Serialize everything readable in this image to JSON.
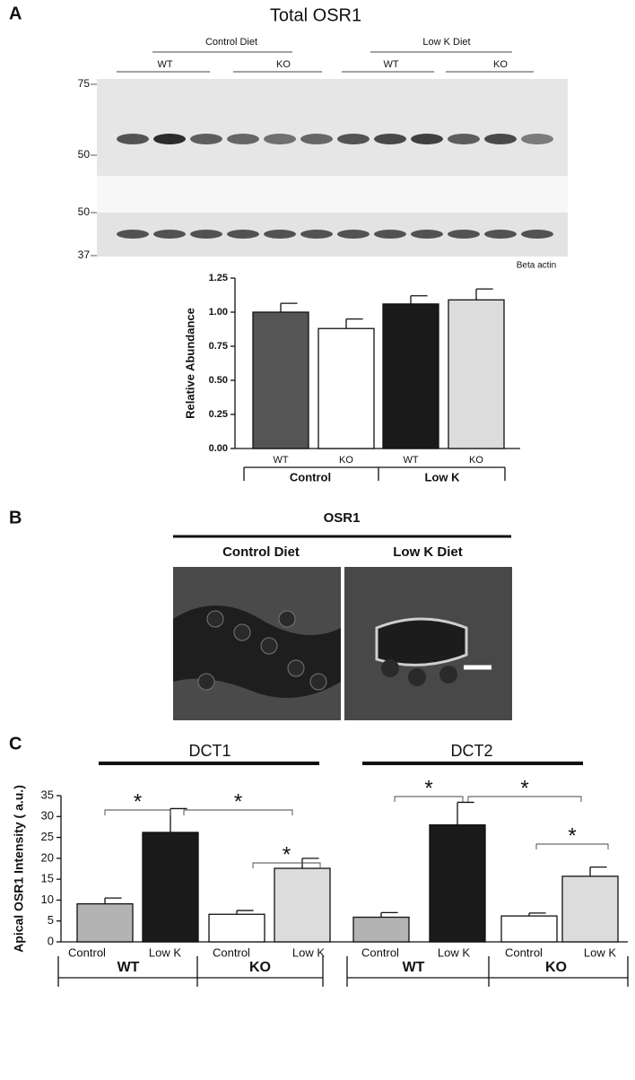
{
  "blot": {
    "panel": "A",
    "title": "Total OSR1",
    "diets": [
      "Control Diet",
      "Low K Diet"
    ],
    "genotypes": [
      "WT",
      "KO",
      "WT",
      "KO"
    ],
    "markers": [
      75,
      50,
      50,
      37
    ],
    "loading_control": "Beta  actin"
  },
  "micrograph": {
    "panel": "B",
    "title": "OSR1",
    "conditions": [
      "Control Diet",
      "Low K Diet"
    ]
  },
  "chart_data": [
    {
      "type": "bar",
      "ylabel": "Relative Abundance",
      "categories": [
        "WT",
        "KO",
        "WT",
        "KO"
      ],
      "values": [
        1.0,
        0.88,
        1.06,
        1.09
      ],
      "errors": [
        0.065,
        0.07,
        0.06,
        0.08
      ],
      "colors": [
        "#555555",
        "#ffffff",
        "#1a1a1a",
        "#dcdcdc"
      ],
      "ylim": [
        0,
        1.25
      ],
      "yticks": [
        {
          "value": 0,
          "label": "0.00"
        },
        {
          "value": 0.25,
          "label": "0.25"
        },
        {
          "value": 0.5,
          "label": "0.50"
        },
        {
          "value": 0.75,
          "label": "0.75"
        },
        {
          "value": 1,
          "label": "1.00"
        },
        {
          "value": 1.25,
          "label": "1.25"
        }
      ],
      "groups": [
        "Control",
        "Low K"
      ]
    },
    {
      "type": "bar",
      "panel": "C",
      "groups": [
        "DCT1",
        "DCT2"
      ],
      "subgroups": [
        "WT",
        "KO",
        "WT",
        "KO"
      ],
      "ylabel": "Apical OSR1 Intensity ( a.u.)",
      "categories": [
        "Control",
        "Low K",
        "Control",
        "Low K",
        "Control",
        "Low K",
        "Control",
        "Low K"
      ],
      "values": [
        9.1,
        26.2,
        6.6,
        17.6,
        5.9,
        28.0,
        6.2,
        15.7
      ],
      "errors": [
        1.4,
        5.7,
        0.9,
        2.4,
        1.1,
        5.4,
        0.7,
        2.2
      ],
      "colors": [
        "#b3b3b3",
        "#1a1a1a",
        "#ffffff",
        "#dcdcdc",
        "#b3b3b3",
        "#1a1a1a",
        "#ffffff",
        "#dcdcdc"
      ],
      "ylim": [
        0,
        35
      ],
      "yticks": [
        0,
        5,
        10,
        15,
        20,
        25,
        30,
        35
      ],
      "annotations": [
        "*",
        "*",
        "*",
        "*",
        "*",
        "*"
      ]
    }
  ]
}
